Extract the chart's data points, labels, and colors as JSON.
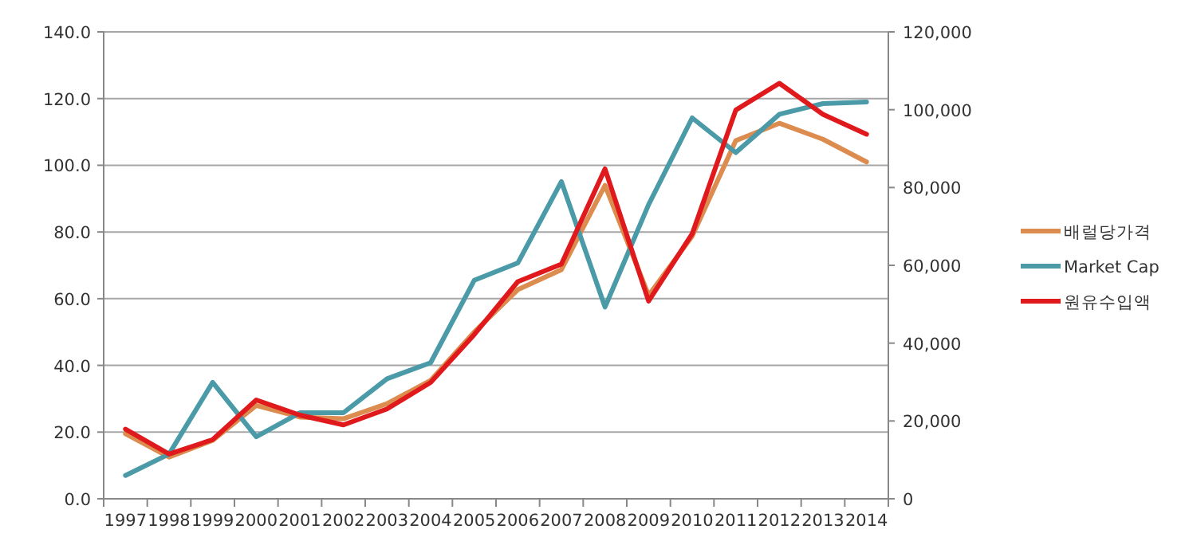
{
  "chart_data": {
    "type": "line",
    "categories": [
      "1997",
      "1998",
      "1999",
      "2000",
      "2001",
      "2002",
      "2003",
      "2004",
      "2005",
      "2006",
      "2007",
      "2008",
      "2009",
      "2010",
      "2011",
      "2012",
      "2013",
      "2014"
    ],
    "series": [
      {
        "name": "배럴당가격",
        "color": "#dc8c4e",
        "values": [
          19.5,
          12.5,
          17.5,
          28.0,
          24.5,
          24.0,
          28.5,
          35.5,
          50.0,
          62.7,
          68.7,
          94.0,
          61.0,
          78.7,
          107.4,
          112.6,
          107.8,
          101.0
        ]
      },
      {
        "name": "Market Cap",
        "color": "#4a9aa8",
        "values": [
          7.0,
          13.4,
          34.9,
          18.6,
          25.8,
          25.8,
          36.0,
          40.8,
          65.5,
          70.7,
          95.1,
          57.5,
          88.2,
          114.2,
          103.8,
          115.3,
          118.5,
          119.0
        ]
      },
      {
        "name": "원유수입액",
        "color": "#e0191c",
        "axis": "y2",
        "values": [
          17900,
          11500,
          15200,
          25400,
          21500,
          19000,
          23100,
          29900,
          42200,
          55800,
          60300,
          84800,
          50800,
          68100,
          99900,
          106800,
          98800,
          93700
        ]
      }
    ],
    "ylim": [
      0,
      140
    ],
    "yticks": [
      {
        "value": 0,
        "label": "0.0"
      },
      {
        "value": 20,
        "label": "20.0"
      },
      {
        "value": 40,
        "label": "40.0"
      },
      {
        "value": 60,
        "label": "60.0"
      },
      {
        "value": 80,
        "label": "80.0"
      },
      {
        "value": 100,
        "label": "100.0"
      },
      {
        "value": 120,
        "label": "120.0"
      },
      {
        "value": 140,
        "label": "140.0"
      }
    ],
    "y2lim": [
      0,
      120000
    ],
    "y2ticks": [
      0,
      {
        "value": 20000,
        "label": "20,000"
      },
      {
        "value": 40000,
        "label": "40,000"
      },
      {
        "value": 60000,
        "label": "60,000"
      },
      {
        "value": 80000,
        "label": "80,000"
      },
      {
        "value": 100000,
        "label": "100,000"
      },
      {
        "value": 120000,
        "label": "120,000"
      }
    ],
    "grid": "y",
    "legend": "right"
  }
}
